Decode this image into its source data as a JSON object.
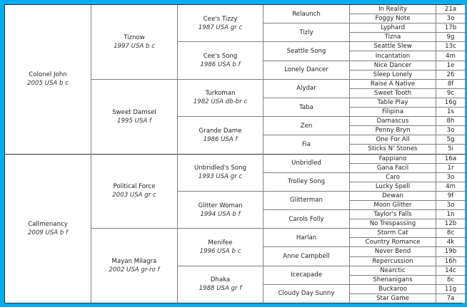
{
  "pedigree": {
    "gen1": [
      {
        "name": "Colonel John",
        "info": "2005 USA b c"
      },
      {
        "name": "Callmenancy",
        "info": "2009 USA b f"
      }
    ],
    "gen2": [
      {
        "name": "Tiznow",
        "info": "1997 USA b c"
      },
      {
        "name": "Sweet Damsel",
        "info": "1995 USA f"
      },
      {
        "name": "Political Force",
        "info": "2003 USA gr c"
      },
      {
        "name": "Mayan Milagra",
        "info": "2002 USA gr-ro f"
      }
    ],
    "gen3": [
      {
        "name": "Cee's Tizzy",
        "info": "1987 USA gr c"
      },
      {
        "name": "Cee's Song",
        "info": "1986 USA b f"
      },
      {
        "name": "Turkoman",
        "info": "1982 USA db-br c"
      },
      {
        "name": "Grande Dame",
        "info": "1986 USA f"
      },
      {
        "name": "Unbridled's Song",
        "info": "1993 USA gr c"
      },
      {
        "name": "Glitter Woman",
        "info": "1994 USA b f"
      },
      {
        "name": "Menifee",
        "info": "1996 USA b c"
      },
      {
        "name": "Dhaka",
        "info": "1988 USA gr f"
      }
    ],
    "gen4": [
      "Relaunch",
      "Tizly",
      "Seattle Song",
      "Lonely Dancer",
      "Alydar",
      "Taba",
      "Zen",
      "Fia",
      "Unbridled",
      "Trolley Song",
      "Glitterman",
      "Carols Folly",
      "Harlan",
      "Anne Campbell",
      "Icecapade",
      "Cloudy Day Sunny"
    ],
    "gen5": [
      {
        "name": "In Reality",
        "family": "21a"
      },
      {
        "name": "Foggy Note",
        "family": "3o"
      },
      {
        "name": "Lyphard",
        "family": "17b"
      },
      {
        "name": "Tizna",
        "family": "9g"
      },
      {
        "name": "Seattle Slew",
        "family": "13c"
      },
      {
        "name": "Incantation",
        "family": "4m"
      },
      {
        "name": "Nice Dancer",
        "family": "1e"
      },
      {
        "name": "Sleep Lonely",
        "family": "26"
      },
      {
        "name": "Raise A Native",
        "family": "8f"
      },
      {
        "name": "Sweet Tooth",
        "family": "9c"
      },
      {
        "name": "Table Play",
        "family": "16g"
      },
      {
        "name": "Filipina",
        "family": "1s"
      },
      {
        "name": "Damascus",
        "family": "8h"
      },
      {
        "name": "Penny Bryn",
        "family": "3o"
      },
      {
        "name": "One For All",
        "family": "5g"
      },
      {
        "name": "Sticks N' Stones",
        "family": "5i"
      },
      {
        "name": "Fappiano",
        "family": "16a"
      },
      {
        "name": "Gana Facil",
        "family": "1r"
      },
      {
        "name": "Caro",
        "family": "3o"
      },
      {
        "name": "Lucky Spell",
        "family": "4m"
      },
      {
        "name": "Dewan",
        "family": "9f"
      },
      {
        "name": "Moon Glitter",
        "family": "3o"
      },
      {
        "name": "Taylor's Falls",
        "family": "1n"
      },
      {
        "name": "No Trespassing",
        "family": "12b"
      },
      {
        "name": "Storm Cat",
        "family": "8c"
      },
      {
        "name": "Country Romance",
        "family": "4k"
      },
      {
        "name": "Never Bend",
        "family": "19b"
      },
      {
        "name": "Repercussion",
        "family": "16h"
      },
      {
        "name": "Nearctic",
        "family": "14c"
      },
      {
        "name": "Shenanigans",
        "family": "8c"
      },
      {
        "name": "Buckaroo",
        "family": "11g"
      },
      {
        "name": "Star Game",
        "family": "7a"
      }
    ]
  },
  "colors": {
    "frame": "#00aeef",
    "grid": "#7f7f7f"
  }
}
